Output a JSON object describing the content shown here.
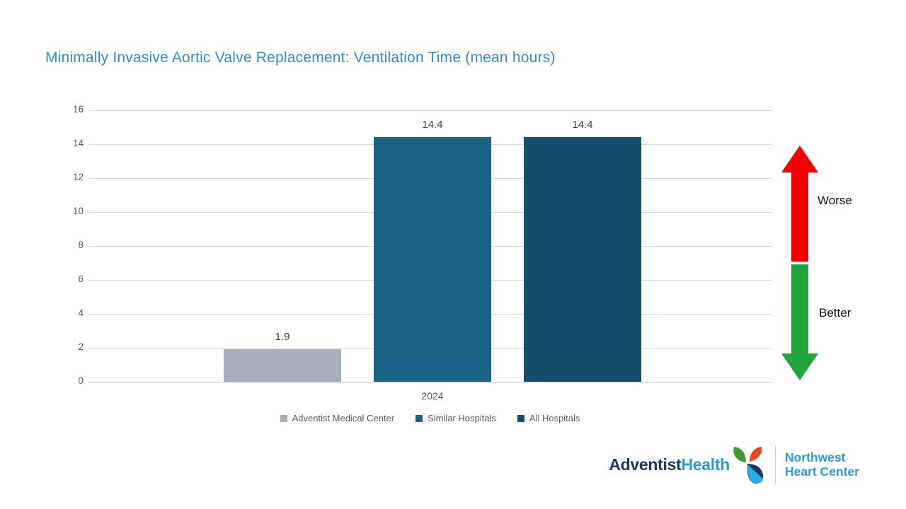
{
  "title": {
    "text": "Minimally Invasive Aortic Valve Replacement: Ventilation Time (mean hours)"
  },
  "chart_data": {
    "type": "bar",
    "title": "Minimally Invasive Aortic Valve Replacement: Ventilation Time (mean hours)",
    "categories": [
      "2024"
    ],
    "series": [
      {
        "name": "Adventist Medical Center",
        "values": [
          1.9
        ],
        "color": "#a6afbb"
      },
      {
        "name": "Similar Hospitals",
        "values": [
          14.4
        ],
        "color": "#1b6384"
      },
      {
        "name": "All Hospitals",
        "values": [
          14.4
        ],
        "color": "#14506c"
      }
    ],
    "value_labels": [
      "1.9",
      "14.4",
      "14.4"
    ],
    "xlabel": "",
    "ylabel": "",
    "ylim": [
      0,
      16
    ],
    "yticks": [
      0,
      2,
      4,
      6,
      8,
      10,
      12,
      14,
      16
    ],
    "grid": true,
    "legend_position": "bottom"
  },
  "annotations": {
    "worse_label": "Worse",
    "better_label": "Better"
  },
  "footer": {
    "brand_part1": "Adventist",
    "brand_part2": "Health",
    "center_line1": "Northwest",
    "center_line2": "Heart Center"
  },
  "colors": {
    "title_blue": "#2e8cd5",
    "bar_gray": "#a6afbb",
    "bar_medium_blue": "#1b6384",
    "bar_dark_blue": "#14506c",
    "worse_red": "#f40000",
    "better_green": "#21a53c",
    "gridline": "#d9d9d9",
    "axis_text": "#595959",
    "value_text": "#404040",
    "brand_navy": "#1b3765",
    "brand_blue": "#2d9bd5",
    "leaf_green": "#3f9c35",
    "leaf_red": "#e34527",
    "leaf_lightblue": "#29abe2"
  }
}
